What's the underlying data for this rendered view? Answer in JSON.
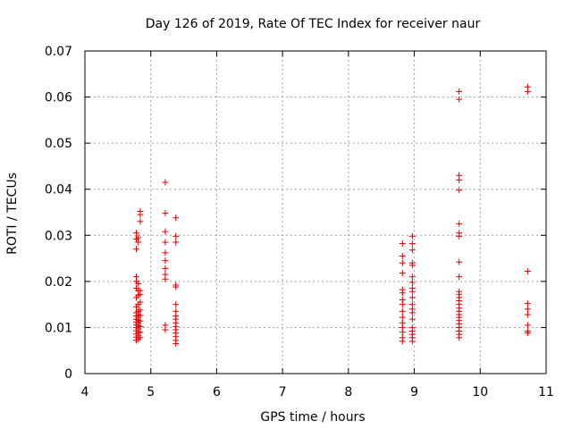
{
  "chart_data": {
    "type": "scatter",
    "title": "Day 126 of 2019, Rate Of TEC Index for receiver naur",
    "xlabel": "GPS time / hours",
    "ylabel": "ROTI / TECUs",
    "xlim": [
      4,
      11
    ],
    "ylim": [
      0,
      0.07
    ],
    "xticks": [
      4,
      5,
      6,
      7,
      8,
      9,
      10,
      11
    ],
    "xtick_labels": [
      "4",
      "5",
      "6",
      "7",
      "8",
      "9",
      "10",
      "11"
    ],
    "yticks": [
      0,
      0.01,
      0.02,
      0.03,
      0.04,
      0.05,
      0.06,
      0.07
    ],
    "ytick_labels": [
      "0",
      "0.01",
      "0.02",
      "0.03",
      "0.04",
      "0.05",
      "0.06",
      "0.07"
    ],
    "grid": true,
    "marker": "+",
    "marker_color": "#dd0000",
    "series": [
      {
        "name": "ROTI",
        "points": [
          [
            4.78,
            0.0072
          ],
          [
            4.78,
            0.0079
          ],
          [
            4.78,
            0.0086
          ],
          [
            4.78,
            0.0093
          ],
          [
            4.78,
            0.01
          ],
          [
            4.78,
            0.0106
          ],
          [
            4.78,
            0.0112
          ],
          [
            4.78,
            0.0118
          ],
          [
            4.78,
            0.0125
          ],
          [
            4.78,
            0.0132
          ],
          [
            4.78,
            0.0145
          ],
          [
            4.78,
            0.0165
          ],
          [
            4.78,
            0.0185
          ],
          [
            4.78,
            0.02
          ],
          [
            4.78,
            0.021
          ],
          [
            4.78,
            0.027
          ],
          [
            4.78,
            0.0292
          ],
          [
            4.78,
            0.0305
          ],
          [
            4.81,
            0.0075
          ],
          [
            4.81,
            0.0082
          ],
          [
            4.81,
            0.0089
          ],
          [
            4.81,
            0.0097
          ],
          [
            4.81,
            0.0104
          ],
          [
            4.81,
            0.011
          ],
          [
            4.81,
            0.0116
          ],
          [
            4.81,
            0.0122
          ],
          [
            4.81,
            0.0128
          ],
          [
            4.81,
            0.0135
          ],
          [
            4.81,
            0.015
          ],
          [
            4.81,
            0.017
          ],
          [
            4.81,
            0.018
          ],
          [
            4.81,
            0.0195
          ],
          [
            4.81,
            0.0285
          ],
          [
            4.81,
            0.0295
          ],
          [
            4.84,
            0.0078
          ],
          [
            4.84,
            0.009
          ],
          [
            4.84,
            0.0102
          ],
          [
            4.84,
            0.0114
          ],
          [
            4.84,
            0.0126
          ],
          [
            4.84,
            0.0138
          ],
          [
            4.84,
            0.0155
          ],
          [
            4.84,
            0.0172
          ],
          [
            4.84,
            0.018
          ],
          [
            4.84,
            0.033
          ],
          [
            4.84,
            0.0345
          ],
          [
            4.84,
            0.0352
          ],
          [
            5.22,
            0.0415
          ],
          [
            5.22,
            0.0348
          ],
          [
            5.22,
            0.0308
          ],
          [
            5.22,
            0.0285
          ],
          [
            5.22,
            0.0262
          ],
          [
            5.22,
            0.0245
          ],
          [
            5.22,
            0.0228
          ],
          [
            5.22,
            0.0215
          ],
          [
            5.22,
            0.0205
          ],
          [
            5.22,
            0.0105
          ],
          [
            5.22,
            0.0095
          ],
          [
            5.38,
            0.0338
          ],
          [
            5.38,
            0.0298
          ],
          [
            5.38,
            0.0285
          ],
          [
            5.38,
            0.0192
          ],
          [
            5.38,
            0.0188
          ],
          [
            5.38,
            0.015
          ],
          [
            5.38,
            0.0135
          ],
          [
            5.38,
            0.0125
          ],
          [
            5.38,
            0.0118
          ],
          [
            5.38,
            0.011
          ],
          [
            5.38,
            0.0102
          ],
          [
            5.38,
            0.0095
          ],
          [
            5.38,
            0.0088
          ],
          [
            5.38,
            0.008
          ],
          [
            5.38,
            0.0072
          ],
          [
            5.38,
            0.0065
          ],
          [
            8.82,
            0.0282
          ],
          [
            8.82,
            0.0255
          ],
          [
            8.82,
            0.024
          ],
          [
            8.82,
            0.0218
          ],
          [
            8.82,
            0.0182
          ],
          [
            8.82,
            0.0175
          ],
          [
            8.82,
            0.016
          ],
          [
            8.82,
            0.015
          ],
          [
            8.82,
            0.0135
          ],
          [
            8.82,
            0.0122
          ],
          [
            8.82,
            0.011
          ],
          [
            8.82,
            0.01
          ],
          [
            8.82,
            0.009
          ],
          [
            8.82,
            0.0078
          ],
          [
            8.82,
            0.007
          ],
          [
            8.97,
            0.0298
          ],
          [
            8.97,
            0.0282
          ],
          [
            8.97,
            0.0268
          ],
          [
            8.97,
            0.024
          ],
          [
            8.97,
            0.0235
          ],
          [
            8.97,
            0.021
          ],
          [
            8.97,
            0.0198
          ],
          [
            8.97,
            0.0185
          ],
          [
            8.97,
            0.0178
          ],
          [
            8.97,
            0.0165
          ],
          [
            8.97,
            0.015
          ],
          [
            8.97,
            0.014
          ],
          [
            8.97,
            0.0132
          ],
          [
            8.97,
            0.0118
          ],
          [
            8.97,
            0.01
          ],
          [
            8.97,
            0.0092
          ],
          [
            8.97,
            0.0085
          ],
          [
            8.97,
            0.0078
          ],
          [
            8.97,
            0.007
          ],
          [
            9.68,
            0.0612
          ],
          [
            9.68,
            0.0595
          ],
          [
            9.68,
            0.043
          ],
          [
            9.68,
            0.042
          ],
          [
            9.68,
            0.0398
          ],
          [
            9.68,
            0.0325
          ],
          [
            9.68,
            0.0305
          ],
          [
            9.68,
            0.0298
          ],
          [
            9.68,
            0.0242
          ],
          [
            9.68,
            0.021
          ],
          [
            9.68,
            0.0178
          ],
          [
            9.68,
            0.0172
          ],
          [
            9.68,
            0.0165
          ],
          [
            9.68,
            0.0158
          ],
          [
            9.68,
            0.015
          ],
          [
            9.68,
            0.0142
          ],
          [
            9.68,
            0.0135
          ],
          [
            9.68,
            0.0128
          ],
          [
            9.68,
            0.0122
          ],
          [
            9.68,
            0.0115
          ],
          [
            9.68,
            0.0108
          ],
          [
            9.68,
            0.01
          ],
          [
            9.68,
            0.0092
          ],
          [
            9.68,
            0.0085
          ],
          [
            9.68,
            0.0078
          ],
          [
            10.72,
            0.0622
          ],
          [
            10.72,
            0.0612
          ],
          [
            10.72,
            0.0222
          ],
          [
            10.72,
            0.0152
          ],
          [
            10.72,
            0.014
          ],
          [
            10.72,
            0.0128
          ],
          [
            10.72,
            0.0105
          ],
          [
            10.72,
            0.0092
          ],
          [
            10.72,
            0.0088
          ]
        ]
      }
    ]
  }
}
